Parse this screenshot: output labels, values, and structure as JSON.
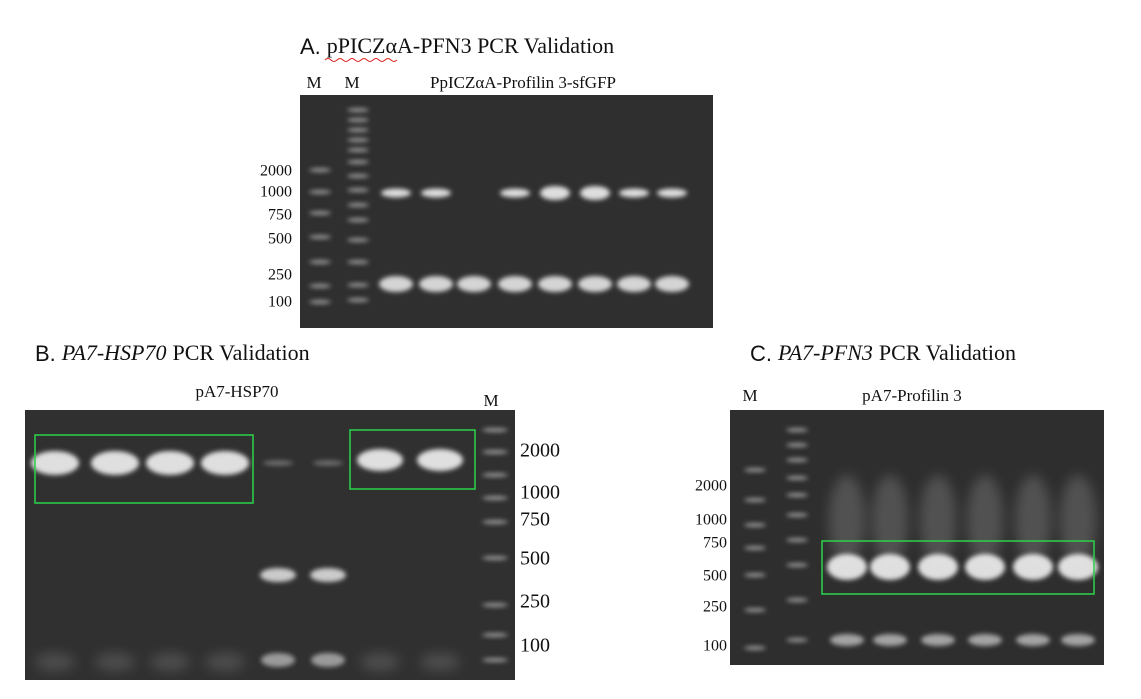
{
  "panels": [
    {
      "letter": "A.",
      "title_italic": "",
      "title": "pPICZαA-PFN3 PCR Validation",
      "lanes": [
        "M",
        "M",
        "PpICZαA-Profilin 3-sfGFP"
      ],
      "markers": [
        2000,
        1000,
        750,
        500,
        250,
        100
      ]
    },
    {
      "letter": "B.",
      "title_italic": "PA7-HSP70",
      "title": "PCR Validation",
      "lanes": [
        "pA7-HSP70",
        "M"
      ],
      "markers": [
        2000,
        1000,
        750,
        500,
        250,
        100
      ]
    },
    {
      "letter": "C.",
      "title_italic": "PA7-PFN3",
      "title": "PCR Validation",
      "lanes": [
        "M",
        "pA7-Profilin 3"
      ],
      "markers": [
        2000,
        1000,
        750,
        500,
        250,
        100
      ]
    }
  ]
}
